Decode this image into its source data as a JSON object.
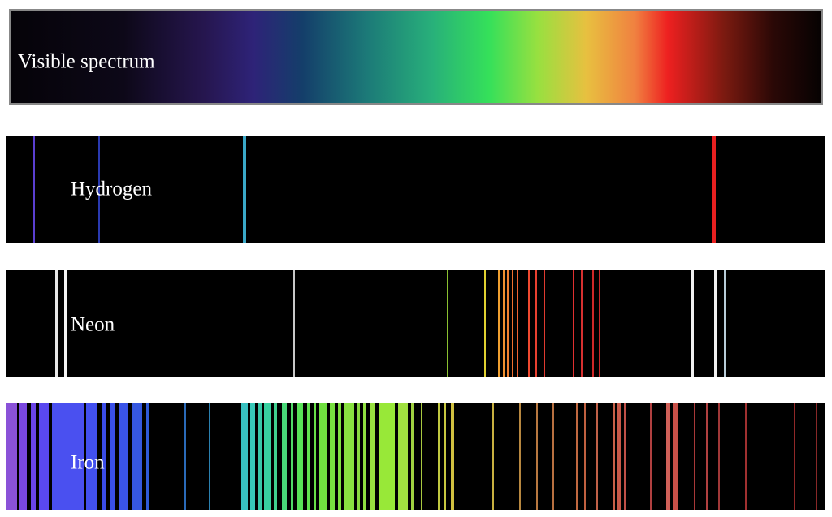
{
  "bands": [
    {
      "label": "Visible spectrum"
    },
    {
      "label": "Hydrogen"
    },
    {
      "label": "Neon"
    },
    {
      "label": "Iron"
    }
  ]
}
